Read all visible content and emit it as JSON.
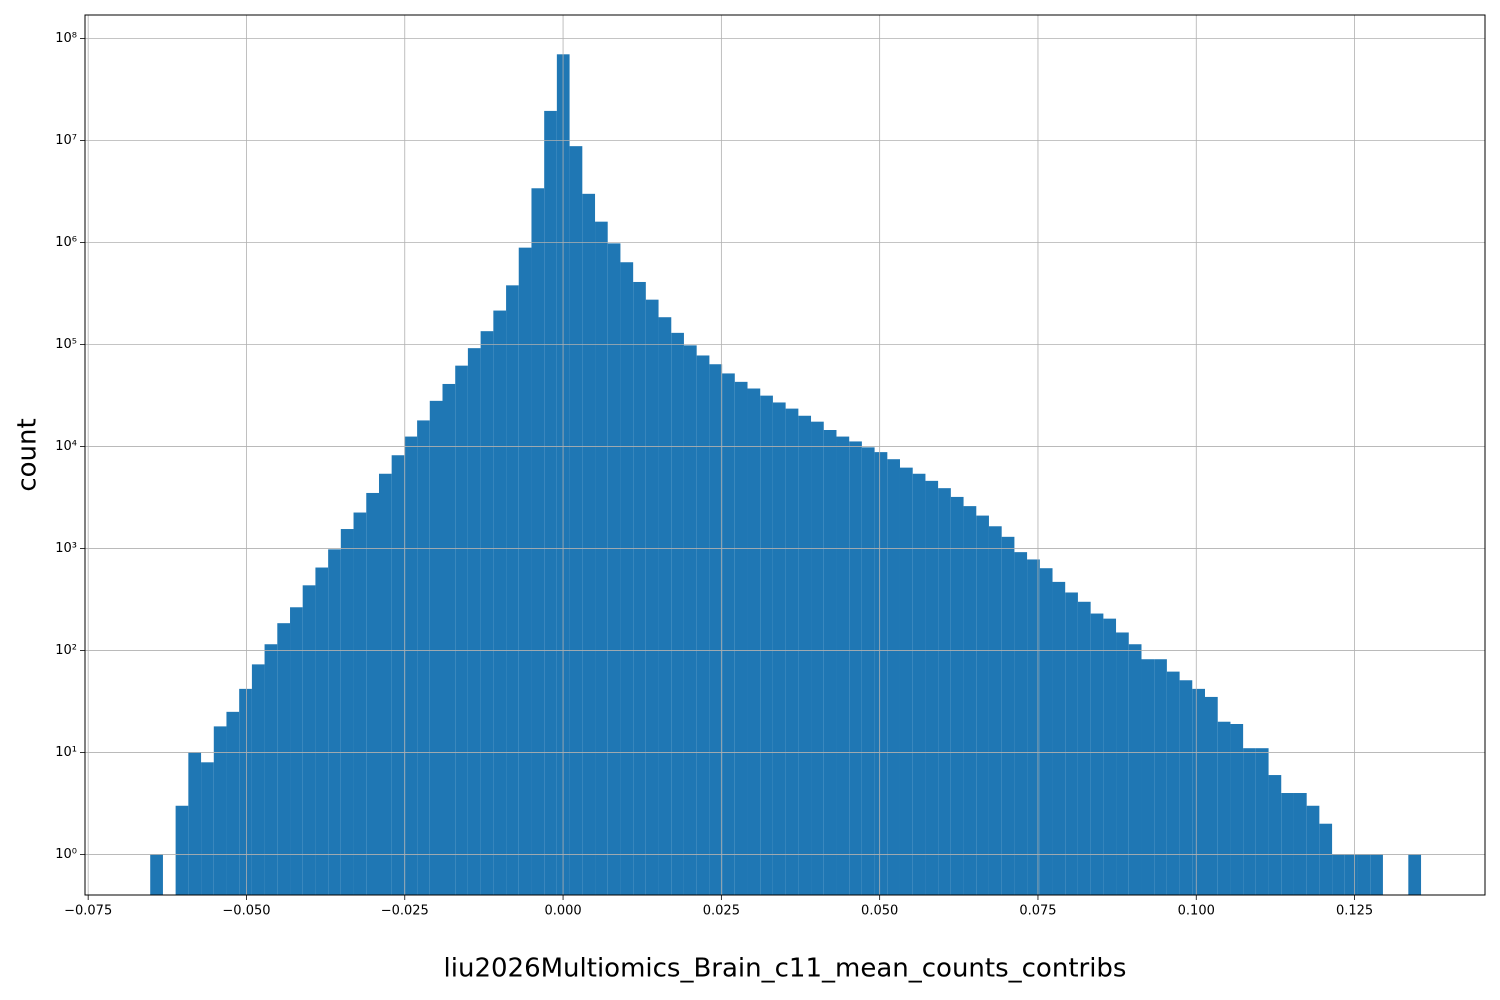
{
  "chart_data": {
    "type": "histogram",
    "x_label": "liu2026Multiomics_Brain_c11_mean_counts_contribs",
    "y_label": "count",
    "color": "#1f77b4",
    "log_y": true,
    "grid": true,
    "bins": [
      -0.0652,
      -0.06319,
      -0.06119,
      -0.05918,
      -0.05717,
      -0.05516,
      -0.05316,
      -0.05115,
      -0.04914,
      -0.04714,
      -0.04513,
      -0.04312,
      -0.04112,
      -0.03911,
      -0.0371,
      -0.0351,
      -0.03309,
      -0.03108,
      -0.02907,
      -0.02707,
      -0.02506,
      -0.02305,
      -0.02105,
      -0.01904,
      -0.01703,
      -0.01503,
      -0.01302,
      -0.01101,
      -0.009,
      -0.007,
      -0.00499,
      -0.00298,
      -0.00098,
      0.00103,
      0.00304,
      0.00505,
      0.00705,
      0.00906,
      0.01107,
      0.01307,
      0.01508,
      0.01709,
      0.01909,
      0.0211,
      0.02311,
      0.02512,
      0.02712,
      0.02913,
      0.03114,
      0.03314,
      0.03515,
      0.03716,
      0.03916,
      0.04117,
      0.04318,
      0.04519,
      0.04719,
      0.0492,
      0.05121,
      0.05321,
      0.05522,
      0.05723,
      0.05923,
      0.06124,
      0.06325,
      0.06526,
      0.06726,
      0.06927,
      0.07128,
      0.07328,
      0.07529,
      0.0773,
      0.0793,
      0.08131,
      0.08332,
      0.08533,
      0.08733,
      0.08934,
      0.09135,
      0.09335,
      0.09536,
      0.09737,
      0.09937,
      0.10138,
      0.10339,
      0.1054,
      0.1074,
      0.10941,
      0.11142,
      0.11342,
      0.11543,
      0.11744,
      0.11944,
      0.12145,
      0.12346,
      0.12547,
      0.12747,
      0.12948,
      0.13149,
      0.13349,
      0.1355
    ],
    "values": [
      1,
      0,
      3,
      10,
      8,
      18,
      25,
      42,
      73,
      115,
      185,
      265,
      435,
      650,
      980,
      1550,
      2250,
      3500,
      5400,
      8200,
      12500,
      18000,
      28000,
      41000,
      62000,
      92000,
      135000,
      215000,
      380000,
      890000,
      3400000,
      19500000,
      70000000,
      8800000,
      3000000,
      1600000,
      980000,
      640000,
      410000,
      275000,
      185000,
      130000,
      98000,
      78000,
      64000,
      52000,
      43000,
      37000,
      31500,
      27000,
      23500,
      20000,
      17500,
      14500,
      12500,
      11200,
      9800,
      8800,
      7500,
      6200,
      5400,
      4600,
      3900,
      3200,
      2600,
      2100,
      1650,
      1300,
      920,
      780,
      640,
      470,
      370,
      300,
      230,
      205,
      150,
      115,
      82,
      82,
      62,
      51,
      42,
      35,
      20,
      19,
      11,
      11,
      6,
      4,
      4,
      3,
      2,
      1,
      1,
      1,
      1,
      0,
      0,
      1
    ],
    "xlim": [
      -0.0755,
      0.1456
    ],
    "ylim": [
      0.4,
      170000000
    ],
    "xticks": [
      {
        "value": -0.075,
        "label": "−0.075"
      },
      {
        "value": -0.05,
        "label": "−0.050"
      },
      {
        "value": -0.025,
        "label": "−0.025"
      },
      {
        "value": 0,
        "label": "0.000"
      },
      {
        "value": 0.025,
        "label": "0.025"
      },
      {
        "value": 0.05,
        "label": "0.050"
      },
      {
        "value": 0.075,
        "label": "0.075"
      },
      {
        "value": 0.1,
        "label": "0.100"
      },
      {
        "value": 0.125,
        "label": "0.125"
      }
    ],
    "yticks": [
      {
        "value": 1,
        "label": "10⁰"
      },
      {
        "value": 10,
        "label": "10¹"
      },
      {
        "value": 100,
        "label": "10²"
      },
      {
        "value": 1000,
        "label": "10³"
      },
      {
        "value": 10000,
        "label": "10⁴"
      },
      {
        "value": 100000,
        "label": "10⁵"
      },
      {
        "value": 1000000,
        "label": "10⁶"
      },
      {
        "value": 10000000,
        "label": "10⁷"
      },
      {
        "value": 100000000,
        "label": "10⁸"
      }
    ]
  }
}
